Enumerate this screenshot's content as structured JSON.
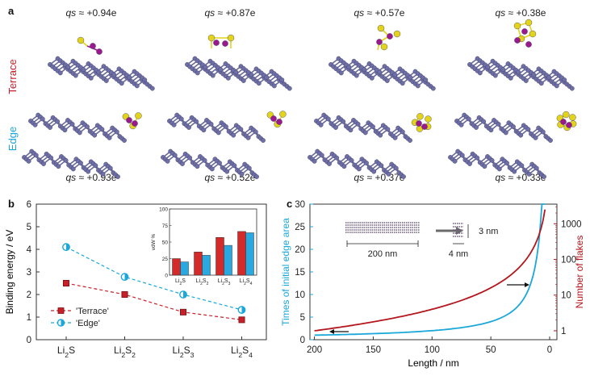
{
  "panel_a": {
    "letter": "a",
    "row_labels": {
      "terrace": "Terrace",
      "edge": "Edge"
    },
    "row_label_colors": {
      "terrace": "#c8202a",
      "edge": "#1aa7d9"
    },
    "terrace_charges": [
      {
        "q": "qs",
        "value": " ≈ +0.94e"
      },
      {
        "q": "qs",
        "value": " ≈ +0.87e"
      },
      {
        "q": "qs",
        "value": " ≈ +0.57e"
      },
      {
        "q": "qs",
        "value": " ≈ +0.38e"
      }
    ],
    "edge_charges": [
      {
        "q": "qs",
        "value": " ≈ +0.93e"
      },
      {
        "q": "qs",
        "value": " ≈ +0.52e"
      },
      {
        "q": "qs",
        "value": " ≈ +0.37e"
      },
      {
        "q": "qs",
        "value": " ≈ +0.33e"
      }
    ],
    "atom_colors": {
      "phosphorus": "#6f6fa8",
      "sulfur": "#e3d31a",
      "lithium": "#9a1a8e"
    }
  },
  "panel_b_letter": "b",
  "panel_c_letter": "c",
  "chart_data": [
    {
      "id": "b-main",
      "type": "line",
      "categories": [
        "Li2S",
        "Li2S2",
        "Li2S3",
        "Li2S4"
      ],
      "series": [
        {
          "name": "'Terrace'",
          "color": "#c8202a",
          "values": [
            2.5,
            2.0,
            1.22,
            0.88
          ]
        },
        {
          "name": "'Edge'",
          "color": "#1aa7d9",
          "values": [
            4.1,
            2.78,
            2.0,
            1.32
          ]
        }
      ],
      "ylabel": "Binding energy / eV",
      "ylim": [
        0,
        6
      ],
      "yticks": [
        0,
        1,
        2,
        3,
        4,
        5,
        6
      ],
      "legend": "bottom-left"
    },
    {
      "id": "b-inset",
      "type": "bar",
      "categories": [
        "Li2S",
        "Li2S2",
        "Li2S3",
        "Li2S4"
      ],
      "series": [
        {
          "name": "Terrace",
          "color": "#d42a2a",
          "values": [
            25,
            35,
            57,
            66
          ]
        },
        {
          "name": "Edge",
          "color": "#2aa8e0",
          "values": [
            20,
            30,
            45,
            64
          ]
        }
      ],
      "ylabel": "vdW %",
      "ylim": [
        0,
        100
      ],
      "yticks": [
        0,
        25,
        50,
        75,
        100
      ]
    },
    {
      "id": "c-main",
      "type": "line",
      "xlabel": "Length / nm",
      "xlim": [
        210,
        0
      ],
      "xticks": [
        200,
        150,
        100,
        50,
        0
      ],
      "ylabel": "Times of initial edge area",
      "ylabel_color": "#1aa7d9",
      "ylim": [
        0,
        30
      ],
      "yticks": [
        0,
        5,
        10,
        15,
        20,
        25,
        30
      ],
      "y2label": "Number of flakes",
      "y2label_color": "#b4161c",
      "y2scale": "log",
      "y2ticks": [
        1,
        10,
        100,
        1000
      ],
      "series": [
        {
          "name": "Times of initial edge area",
          "axis": "left",
          "color": "#1aa7d9",
          "x": [
            200,
            150,
            100,
            50,
            30,
            20,
            10,
            6,
            4
          ],
          "y": [
            1,
            1.33,
            2,
            4,
            6.7,
            10,
            20,
            30,
            50
          ]
        },
        {
          "name": "Number of flakes",
          "axis": "right",
          "color": "#b4161c",
          "x": [
            200,
            150,
            100,
            50,
            30,
            20,
            10,
            6,
            4
          ],
          "y": [
            1,
            1.78,
            4,
            16,
            44.4,
            100,
            400,
            1111,
            2500
          ]
        }
      ],
      "annotations": {
        "large_flake": "200 nm",
        "small_height": "3 nm",
        "small_width": "4 nm"
      }
    }
  ]
}
